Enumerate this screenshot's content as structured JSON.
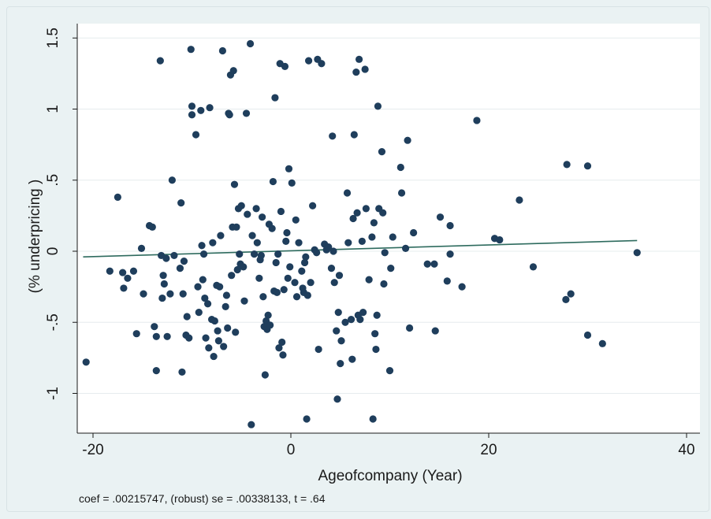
{
  "chart_data": {
    "type": "scatter",
    "title": "",
    "xlabel": "Ageofcompany (Year)",
    "ylabel": "(% underpricing )",
    "xlim": [
      -21,
      40
    ],
    "ylim": [
      -1.25,
      1.55
    ],
    "x_ticks": [
      -20,
      0,
      20,
      40
    ],
    "x_tick_labels": [
      "-20",
      "0",
      "20",
      "40"
    ],
    "y_ticks": [
      1.5,
      1,
      0.5,
      0,
      -0.5,
      -1
    ],
    "y_tick_labels": [
      "1.5",
      "1",
      ".5",
      "0",
      "-.5",
      "-1"
    ],
    "grid": "horizontal",
    "note": "coef = .00215747, (robust) se = .00338133, t = .64",
    "colors": {
      "points": "#1f3e5c",
      "fit_line": "#2e6b5e",
      "plot_bg": "#ffffff",
      "outer_bg": "#eaf2f3",
      "grid": "#e6ecee"
    },
    "fit_line": {
      "x": [
        -21,
        35
      ],
      "y": [
        -0.04,
        0.075
      ]
    },
    "points": [
      {
        "x": -20.7,
        "y": -0.78
      },
      {
        "x": -18.3,
        "y": -0.14
      },
      {
        "x": -17.5,
        "y": 0.38
      },
      {
        "x": -17,
        "y": -0.15
      },
      {
        "x": -16.9,
        "y": -0.26
      },
      {
        "x": -16.5,
        "y": -0.19
      },
      {
        "x": -15.9,
        "y": -0.14
      },
      {
        "x": -15.6,
        "y": -0.58
      },
      {
        "x": -15.1,
        "y": 0.02
      },
      {
        "x": -14.9,
        "y": -0.3
      },
      {
        "x": -14.3,
        "y": 0.18
      },
      {
        "x": -14,
        "y": 0.17
      },
      {
        "x": -13.8,
        "y": -0.53
      },
      {
        "x": -13.6,
        "y": -0.84
      },
      {
        "x": -13.6,
        "y": -0.6
      },
      {
        "x": -13.2,
        "y": 1.34
      },
      {
        "x": -13.1,
        "y": -0.03
      },
      {
        "x": -13,
        "y": -0.33
      },
      {
        "x": -12.9,
        "y": -0.17
      },
      {
        "x": -12.8,
        "y": -0.23
      },
      {
        "x": -12.6,
        "y": -0.05
      },
      {
        "x": -12.5,
        "y": -0.6
      },
      {
        "x": -12.2,
        "y": -0.3
      },
      {
        "x": -12,
        "y": 0.5
      },
      {
        "x": -11.8,
        "y": -0.03
      },
      {
        "x": -11.2,
        "y": -0.12
      },
      {
        "x": -11.1,
        "y": 0.34
      },
      {
        "x": -11,
        "y": -0.85
      },
      {
        "x": -10.9,
        "y": -0.3
      },
      {
        "x": -10.8,
        "y": -0.07
      },
      {
        "x": -10.6,
        "y": -0.59
      },
      {
        "x": -10.5,
        "y": -0.46
      },
      {
        "x": -10.3,
        "y": -0.61
      },
      {
        "x": -10.1,
        "y": 1.42
      },
      {
        "x": -10,
        "y": 1.02
      },
      {
        "x": -10,
        "y": 0.96
      },
      {
        "x": -9.6,
        "y": 0.82
      },
      {
        "x": -9.4,
        "y": -0.25
      },
      {
        "x": -9.3,
        "y": -0.43
      },
      {
        "x": -9.1,
        "y": 0.99
      },
      {
        "x": -9,
        "y": 0.04
      },
      {
        "x": -8.9,
        "y": -0.2
      },
      {
        "x": -8.8,
        "y": -0.02
      },
      {
        "x": -8.7,
        "y": -0.33
      },
      {
        "x": -8.6,
        "y": -0.61
      },
      {
        "x": -8.4,
        "y": -0.37
      },
      {
        "x": -8.3,
        "y": -0.68
      },
      {
        "x": -8.2,
        "y": 1.01
      },
      {
        "x": -8,
        "y": -0.48
      },
      {
        "x": -7.9,
        "y": 0.06
      },
      {
        "x": -7.8,
        "y": -0.74
      },
      {
        "x": -7.7,
        "y": -0.49
      },
      {
        "x": -7.5,
        "y": -0.24
      },
      {
        "x": -7.4,
        "y": -0.56
      },
      {
        "x": -7.3,
        "y": -0.63
      },
      {
        "x": -7.2,
        "y": -0.25
      },
      {
        "x": -7.1,
        "y": 0.11
      },
      {
        "x": -6.9,
        "y": 1.41
      },
      {
        "x": -6.8,
        "y": -0.67
      },
      {
        "x": -6.6,
        "y": -0.39
      },
      {
        "x": -6.5,
        "y": -0.31
      },
      {
        "x": -6.4,
        "y": -0.54
      },
      {
        "x": -6.3,
        "y": 0.97
      },
      {
        "x": -6.2,
        "y": 0.96
      },
      {
        "x": -6.1,
        "y": 1.24
      },
      {
        "x": -6,
        "y": -0.17
      },
      {
        "x": -5.9,
        "y": 0.17
      },
      {
        "x": -5.8,
        "y": 1.27
      },
      {
        "x": -5.7,
        "y": 0.47
      },
      {
        "x": -5.6,
        "y": -0.57
      },
      {
        "x": -5.5,
        "y": 0.17
      },
      {
        "x": -5.4,
        "y": -0.13
      },
      {
        "x": -5.3,
        "y": 0.3
      },
      {
        "x": -5.2,
        "y": -0.02
      },
      {
        "x": -5.1,
        "y": -0.09
      },
      {
        "x": -5,
        "y": 0.32
      },
      {
        "x": -4.8,
        "y": -0.11
      },
      {
        "x": -4.7,
        "y": -0.35
      },
      {
        "x": -4.5,
        "y": 0.97
      },
      {
        "x": -4.4,
        "y": 0.26
      },
      {
        "x": -4.1,
        "y": 1.46
      },
      {
        "x": -4,
        "y": -1.22
      },
      {
        "x": -3.9,
        "y": 0.11
      },
      {
        "x": -3.7,
        "y": -0.02
      },
      {
        "x": -3.5,
        "y": 0.3
      },
      {
        "x": -3.4,
        "y": 0.06
      },
      {
        "x": -3.2,
        "y": -0.19
      },
      {
        "x": -3.1,
        "y": -0.06
      },
      {
        "x": -3,
        "y": -0.03
      },
      {
        "x": -2.9,
        "y": 0.24
      },
      {
        "x": -2.8,
        "y": -0.32
      },
      {
        "x": -2.7,
        "y": -0.53
      },
      {
        "x": -2.6,
        "y": -0.87
      },
      {
        "x": -2.5,
        "y": -0.49
      },
      {
        "x": -2.4,
        "y": -0.55
      },
      {
        "x": -2.3,
        "y": -0.45
      },
      {
        "x": -2.2,
        "y": 0.19
      },
      {
        "x": -2.1,
        "y": -0.52
      },
      {
        "x": -1.9,
        "y": 0.16
      },
      {
        "x": -1.8,
        "y": 0.49
      },
      {
        "x": -1.7,
        "y": -0.28
      },
      {
        "x": -1.6,
        "y": 1.08
      },
      {
        "x": -1.5,
        "y": -0.08
      },
      {
        "x": -1.4,
        "y": -0.29
      },
      {
        "x": -1.3,
        "y": -0.02
      },
      {
        "x": -1.2,
        "y": -0.68
      },
      {
        "x": -1.1,
        "y": 1.32
      },
      {
        "x": -1,
        "y": 0.28
      },
      {
        "x": -0.9,
        "y": -0.64
      },
      {
        "x": -0.8,
        "y": -0.73
      },
      {
        "x": -0.7,
        "y": -0.27
      },
      {
        "x": -0.6,
        "y": 1.3
      },
      {
        "x": -0.5,
        "y": 0.07
      },
      {
        "x": -0.4,
        "y": 0.13
      },
      {
        "x": -0.3,
        "y": -0.19
      },
      {
        "x": -0.2,
        "y": 0.58
      },
      {
        "x": -0.1,
        "y": -0.11
      },
      {
        "x": 0.1,
        "y": 0.48
      },
      {
        "x": 0.4,
        "y": -0.22
      },
      {
        "x": 0.5,
        "y": 0.22
      },
      {
        "x": 0.6,
        "y": -0.32
      },
      {
        "x": 0.8,
        "y": 0.06
      },
      {
        "x": 1.1,
        "y": -0.14
      },
      {
        "x": 1.2,
        "y": -0.26
      },
      {
        "x": 1.3,
        "y": -0.29
      },
      {
        "x": 1.4,
        "y": -0.08
      },
      {
        "x": 1.5,
        "y": -0.04
      },
      {
        "x": 1.6,
        "y": -1.18
      },
      {
        "x": 1.7,
        "y": -0.31
      },
      {
        "x": 1.8,
        "y": 1.34
      },
      {
        "x": 2,
        "y": -0.22
      },
      {
        "x": 2.2,
        "y": 0.32
      },
      {
        "x": 2.4,
        "y": 0.01
      },
      {
        "x": 2.6,
        "y": -0.01
      },
      {
        "x": 2.7,
        "y": 1.35
      },
      {
        "x": 2.8,
        "y": -0.69
      },
      {
        "x": 3.1,
        "y": 1.32
      },
      {
        "x": 3.4,
        "y": 0.05
      },
      {
        "x": 3.6,
        "y": 0.01
      },
      {
        "x": 3.8,
        "y": 0.03
      },
      {
        "x": 4.1,
        "y": -0.12
      },
      {
        "x": 4.2,
        "y": 0.81
      },
      {
        "x": 4.3,
        "y": 0.0
      },
      {
        "x": 4.4,
        "y": -0.22
      },
      {
        "x": 4.6,
        "y": -0.56
      },
      {
        "x": 4.7,
        "y": -1.04
      },
      {
        "x": 4.8,
        "y": -0.43
      },
      {
        "x": 4.9,
        "y": -0.17
      },
      {
        "x": 5,
        "y": -0.79
      },
      {
        "x": 5.1,
        "y": -0.63
      },
      {
        "x": 5.5,
        "y": -0.5
      },
      {
        "x": 5.7,
        "y": 0.41
      },
      {
        "x": 5.8,
        "y": 0.06
      },
      {
        "x": 6.1,
        "y": -0.48
      },
      {
        "x": 6.2,
        "y": -0.76
      },
      {
        "x": 6.3,
        "y": 0.23
      },
      {
        "x": 6.4,
        "y": 0.82
      },
      {
        "x": 6.6,
        "y": 1.26
      },
      {
        "x": 6.7,
        "y": 0.27
      },
      {
        "x": 6.8,
        "y": -0.45
      },
      {
        "x": 6.9,
        "y": 1.35
      },
      {
        "x": 7,
        "y": -0.48
      },
      {
        "x": 7.2,
        "y": 0.07
      },
      {
        "x": 7.3,
        "y": -0.43
      },
      {
        "x": 7.5,
        "y": 1.28
      },
      {
        "x": 7.6,
        "y": 0.3
      },
      {
        "x": 7.9,
        "y": -0.2
      },
      {
        "x": 8.2,
        "y": 0.1
      },
      {
        "x": 8.3,
        "y": -1.18
      },
      {
        "x": 8.4,
        "y": 0.2
      },
      {
        "x": 8.5,
        "y": -0.58
      },
      {
        "x": 8.6,
        "y": -0.69
      },
      {
        "x": 8.7,
        "y": -0.45
      },
      {
        "x": 8.8,
        "y": 1.02
      },
      {
        "x": 8.9,
        "y": 0.3
      },
      {
        "x": 9.2,
        "y": 0.7
      },
      {
        "x": 9.3,
        "y": 0.27
      },
      {
        "x": 9.4,
        "y": -0.23
      },
      {
        "x": 9.5,
        "y": -0.01
      },
      {
        "x": 10,
        "y": -0.84
      },
      {
        "x": 10.1,
        "y": -0.12
      },
      {
        "x": 10.3,
        "y": 0.1
      },
      {
        "x": 11.1,
        "y": 0.59
      },
      {
        "x": 11.2,
        "y": 0.41
      },
      {
        "x": 11.6,
        "y": 0.02
      },
      {
        "x": 11.8,
        "y": 0.78
      },
      {
        "x": 12,
        "y": -0.54
      },
      {
        "x": 12.4,
        "y": 0.13
      },
      {
        "x": 13.8,
        "y": -0.09
      },
      {
        "x": 14.5,
        "y": -0.09
      },
      {
        "x": 14.6,
        "y": -0.56
      },
      {
        "x": 15.1,
        "y": 0.24
      },
      {
        "x": 15.8,
        "y": -0.21
      },
      {
        "x": 16.1,
        "y": 0.18
      },
      {
        "x": 16.1,
        "y": -0.02
      },
      {
        "x": 17.3,
        "y": -0.25
      },
      {
        "x": 18.8,
        "y": 0.92
      },
      {
        "x": 20.6,
        "y": 0.09
      },
      {
        "x": 21.1,
        "y": 0.08
      },
      {
        "x": 23.1,
        "y": 0.36
      },
      {
        "x": 24.5,
        "y": -0.11
      },
      {
        "x": 27.8,
        "y": -0.34
      },
      {
        "x": 27.9,
        "y": 0.61
      },
      {
        "x": 28.3,
        "y": -0.3
      },
      {
        "x": 30,
        "y": 0.6
      },
      {
        "x": 30,
        "y": -0.59
      },
      {
        "x": 31.5,
        "y": -0.65
      },
      {
        "x": 35,
        "y": -0.01
      }
    ]
  }
}
